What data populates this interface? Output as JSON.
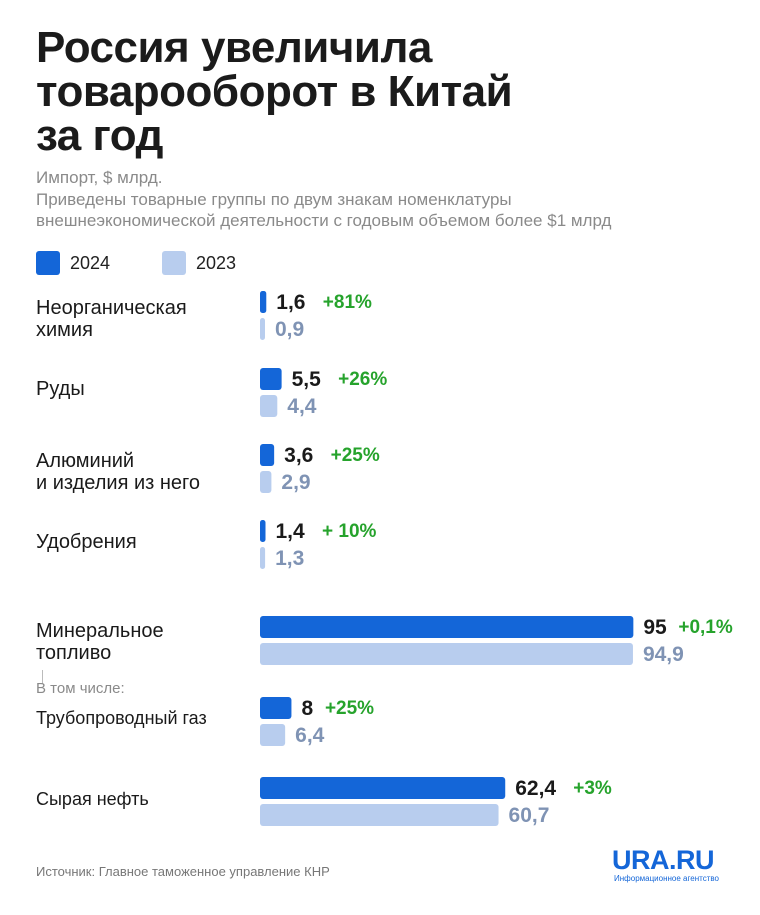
{
  "title_lines": [
    "Россия увеличила",
    "товарооборот в Китай",
    "за год"
  ],
  "subtitle": "Импорт, $ млрд.",
  "description_lines": [
    "Приведены товарные группы по двум знакам номенклатуры",
    "внешнеэкономической деятельности с годовым объемом более $1 млрд"
  ],
  "note": "В том числе:",
  "source": "Источник: Главное таможенное управление КНР",
  "logo": {
    "main": "URA.RU",
    "sub": "Информационное агентство"
  },
  "colors": {
    "series_2024": "#1466d8",
    "series_2023": "#b8cdee",
    "value_2023_text": "#7f93b4",
    "change_text": "#26a32c"
  },
  "chart_data": {
    "type": "bar",
    "orientation": "horizontal",
    "categories": [
      "Неорганическая химия",
      "Руды",
      "Алюминий и изделия из него",
      "Удобрения",
      "Минеральное топливо",
      "Трубопроводный газ",
      "Сырая нефть"
    ],
    "category_lines": [
      [
        "Неорганическая",
        "химия"
      ],
      [
        "Руды"
      ],
      [
        "Алюминий",
        "и изделия из него"
      ],
      [
        "Удобрения"
      ],
      [
        "Минеральное",
        "топливо"
      ],
      [
        "Трубопроводный газ"
      ],
      [
        "Сырая нефть"
      ]
    ],
    "series": [
      {
        "name": "2024",
        "values": [
          1.6,
          5.5,
          3.6,
          1.4,
          95,
          8,
          62.4
        ],
        "labels": [
          "1,6",
          "5,5",
          "3,6",
          "1,4",
          "95",
          "8",
          "62,4"
        ]
      },
      {
        "name": "2023",
        "values": [
          0.9,
          4.4,
          2.9,
          1.3,
          94.9,
          6.4,
          60.7
        ],
        "labels": [
          "0,9",
          "4,4",
          "2,9",
          "1,3",
          "94,9",
          "6,4",
          "60,7"
        ]
      }
    ],
    "changes": [
      "+81%",
      "+26%",
      "+25%",
      "+ 10%",
      "+0,1%",
      "+25%",
      "+3%"
    ],
    "note": "В том числе:"
  }
}
